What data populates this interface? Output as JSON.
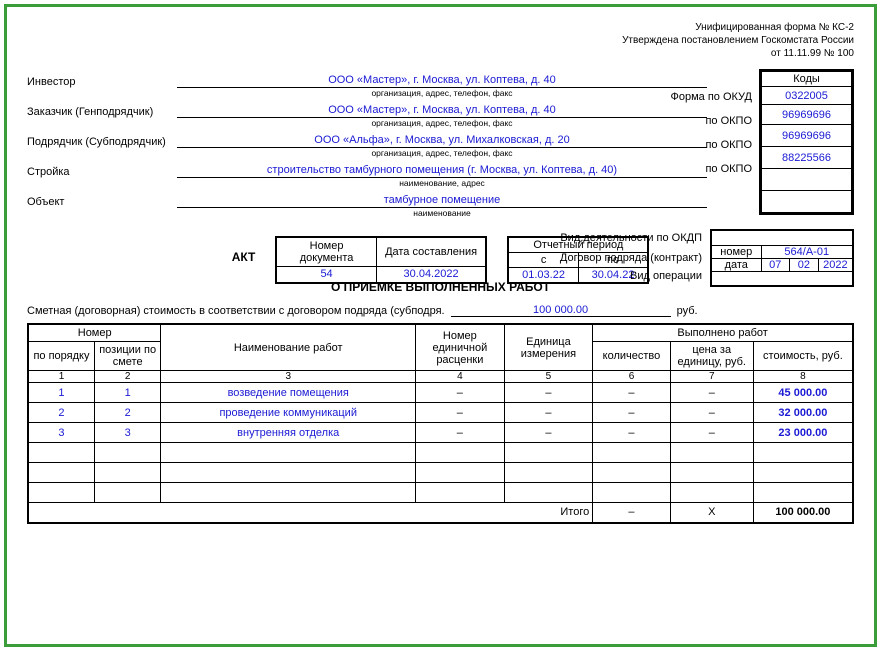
{
  "header": {
    "line1": "Унифицированная форма № КС-2",
    "line2": "Утверждена постановлением Госкомстата России",
    "line3": "от 11.11.99 № 100"
  },
  "codesLabel": "Коды",
  "okudLabel": "Форма по ОКУД",
  "okud": "0322005",
  "okpoLabel": "по ОКПО",
  "parties": {
    "investor": {
      "label": "Инвестор",
      "value": "ООО «Мастер», г. Москва, ул. Коптева, д. 40",
      "sub": "организация, адрес, телефон, факс",
      "okpo": "96969696"
    },
    "customer": {
      "label": "Заказчик (Генподрядчик)",
      "value": "ООО «Мастер», г. Москва, ул. Коптева, д. 40",
      "sub": "организация, адрес, телефон, факс",
      "okpo": "96969696"
    },
    "contractor": {
      "label": "Подрядчик (Субподрядчик)",
      "value": "ООО «Альфа», г. Москва, ул. Михалковская, д. 20",
      "sub": "организация, адрес, телефон, факс",
      "okpo": "88225566"
    },
    "build": {
      "label": "Стройка",
      "value": "строительство тамбурного помещения (г. Москва, ул. Коптева, д. 40)",
      "sub": "наименование, адрес"
    },
    "object": {
      "label": "Объект",
      "value": "тамбурное помещение",
      "sub": "наименование"
    }
  },
  "midLabels": {
    "okdp": "Вид деятельности по ОКДП",
    "contract": "Договор подряда (контракт)",
    "operation": "Вид операции"
  },
  "contract": {
    "numLabel": "номер",
    "num": "564/А-01",
    "dateLabel": "дата",
    "d": "07",
    "m": "02",
    "y": "2022"
  },
  "act": {
    "title1": "АКТ",
    "title2": "О ПРИЕМКЕ ВЫПОЛНЕННЫХ РАБОТ",
    "docNumLabel": "Номер документа",
    "docNum": "54",
    "docDateLabel": "Дата составления",
    "docDate": "30.04.2022",
    "periodLabel": "Отчетный период",
    "fromLabel": "с",
    "toLabel": "по",
    "from": "01.03.22",
    "to": "30.04.22"
  },
  "costLine": {
    "label": "Сметная (договорная) стоимость в соответствии с договором подряда (субподря.",
    "value": "100 000.00",
    "unit": "руб."
  },
  "tableHeaders": {
    "number": "Номер",
    "order": "по порядку",
    "position": "позиции по смете",
    "workName": "Наименование работ",
    "priceNum": "Номер единичной расценки",
    "unit": "Единица измерения",
    "done": "Выполнено работ",
    "qty": "количество",
    "priceUnit": "цена за единицу, руб.",
    "cost": "стоимость, руб."
  },
  "colNums": [
    "1",
    "2",
    "3",
    "4",
    "5",
    "6",
    "7",
    "8"
  ],
  "rows": [
    {
      "n": "1",
      "pos": "1",
      "name": "возведение помещения",
      "pr": "–",
      "unit": "–",
      "qty": "–",
      "pu": "–",
      "cost": "45 000.00"
    },
    {
      "n": "2",
      "pos": "2",
      "name": "проведение коммуникаций",
      "pr": "–",
      "unit": "–",
      "qty": "–",
      "pu": "–",
      "cost": "32 000.00"
    },
    {
      "n": "3",
      "pos": "3",
      "name": "внутренняя отделка",
      "pr": "–",
      "unit": "–",
      "qty": "–",
      "pu": "–",
      "cost": "23 000.00"
    }
  ],
  "totals": {
    "label": "Итого",
    "qty": "–",
    "pu": "Х",
    "cost": "100 000.00"
  }
}
